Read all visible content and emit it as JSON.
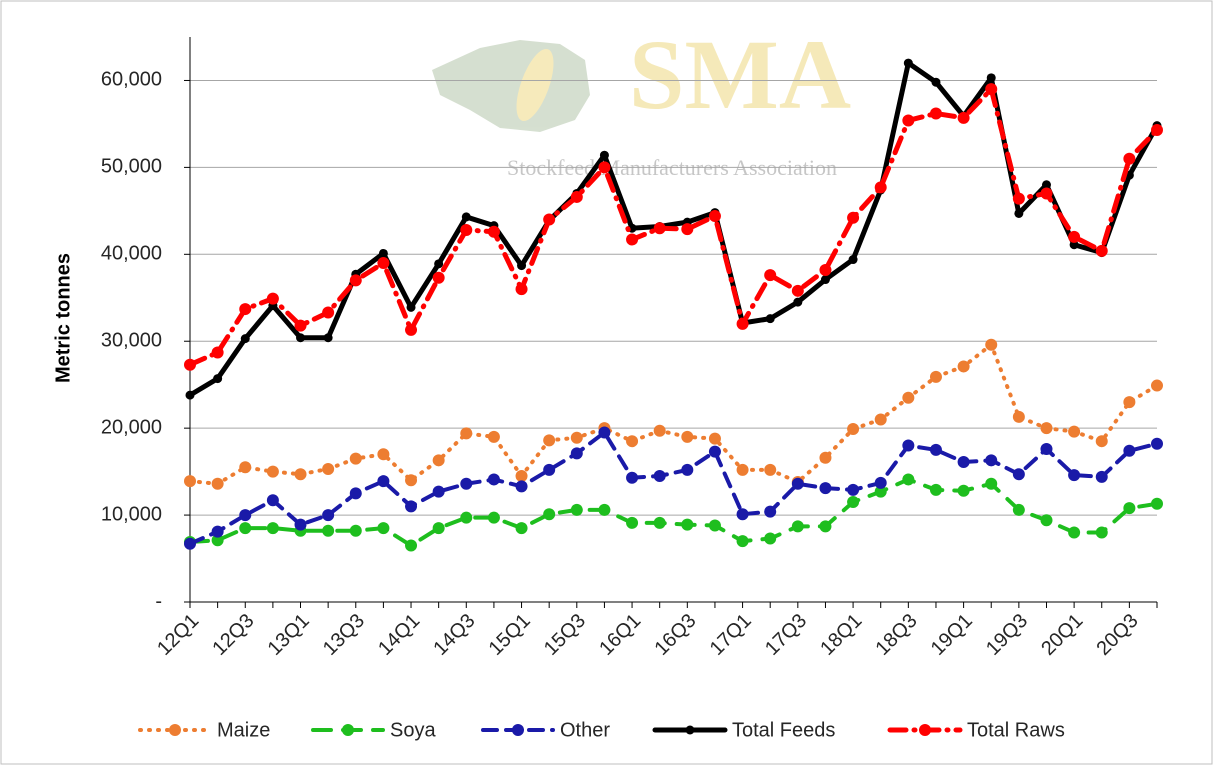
{
  "chart_data": {
    "type": "line",
    "watermark": "SMA",
    "watermark_subtitle": "Stockfeed Manufacturers Association",
    "y_label": "Metric tonnes",
    "categories": [
      "12Q1",
      null,
      "12Q3",
      null,
      "13Q1",
      null,
      "13Q3",
      null,
      "14Q1",
      null,
      "14Q3",
      null,
      "15Q1",
      null,
      "15Q3",
      null,
      "16Q1",
      null,
      "16Q3",
      null,
      "17Q1",
      null,
      "17Q3",
      null,
      "18Q1",
      null,
      "18Q3",
      null,
      "19Q1",
      null,
      "19Q3",
      null,
      "20Q1",
      null,
      "20Q3",
      null
    ],
    "ylim": [
      0,
      65000
    ],
    "yticks": [
      {
        "value": 0,
        "label": "-"
      },
      {
        "value": 10000,
        "label": "10,000"
      },
      {
        "value": 20000,
        "label": "20,000"
      },
      {
        "value": 30000,
        "label": "30,000"
      },
      {
        "value": 40000,
        "label": "40,000"
      },
      {
        "value": 50000,
        "label": "50,000"
      },
      {
        "value": 60000,
        "label": "60,000"
      }
    ],
    "grid": true,
    "legend": "bottom",
    "series": [
      {
        "name": "Maize",
        "color": "#ed7d31",
        "line_style": "dotted",
        "values": [
          13900,
          13600,
          15500,
          15000,
          14700,
          15300,
          16500,
          17000,
          14000,
          16300,
          19400,
          19000,
          14500,
          18600,
          18900,
          20000,
          18500,
          19700,
          19000,
          18800,
          15200,
          15200,
          13800,
          16600,
          19900,
          21000,
          23500,
          25900,
          27100,
          29600,
          21300,
          20000,
          19600,
          18500,
          23000,
          24900
        ]
      },
      {
        "name": "Soya",
        "color": "#1ebe1e",
        "line_style": "long-dash",
        "values": [
          6900,
          7100,
          8500,
          8500,
          8200,
          8200,
          8200,
          8500,
          6500,
          8500,
          9700,
          9700,
          8500,
          10100,
          10600,
          10600,
          9100,
          9100,
          8900,
          8800,
          7000,
          7300,
          8700,
          8700,
          11500,
          12700,
          14100,
          12900,
          12800,
          13600,
          10600,
          9400,
          8000,
          8000,
          10800,
          11300
        ]
      },
      {
        "name": "Other",
        "color": "#1a1aa8",
        "line_style": "dash",
        "values": [
          6700,
          8100,
          10000,
          11700,
          8900,
          10000,
          12500,
          13900,
          11000,
          12700,
          13600,
          14100,
          13300,
          15200,
          17100,
          19500,
          14300,
          14500,
          15200,
          17300,
          10100,
          10400,
          13600,
          13100,
          12900,
          13700,
          18000,
          17500,
          16100,
          16300,
          14700,
          17600,
          14600,
          14400,
          17400,
          18200
        ]
      },
      {
        "name": "Total Feeds",
        "color": "#000000",
        "line_style": "solid",
        "values": [
          23800,
          25700,
          30300,
          34100,
          30400,
          30400,
          37700,
          40100,
          33900,
          38900,
          44300,
          43300,
          38700,
          43900,
          47000,
          51400,
          43000,
          43200,
          43700,
          44800,
          32100,
          32600,
          34500,
          37100,
          39400,
          47400,
          62000,
          59800,
          55900,
          60300,
          44700,
          48000,
          41100,
          40200,
          49100,
          54800
        ]
      },
      {
        "name": "Total Raws",
        "color": "#ff0000",
        "line_style": "dash-dot",
        "values": [
          27300,
          28700,
          33700,
          34900,
          31800,
          33300,
          37000,
          39000,
          31300,
          37300,
          42800,
          42600,
          36000,
          44000,
          46600,
          50000,
          41700,
          43000,
          42900,
          44400,
          32000,
          37600,
          35800,
          38200,
          44200,
          47700,
          55400,
          56200,
          55700,
          59000,
          46400,
          47000,
          42000,
          40400,
          51000,
          54300
        ]
      }
    ]
  }
}
